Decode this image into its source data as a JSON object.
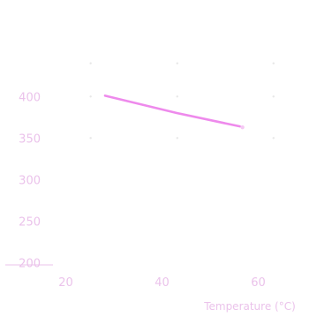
{
  "chart_data": {
    "type": "line",
    "title": "",
    "xlabel": "Temperature (°C)",
    "ylabel": "",
    "xlim": [
      10,
      80
    ],
    "ylim": [
      195,
      440
    ],
    "x_ticks": [
      20,
      40,
      60
    ],
    "y_ticks": [
      200,
      250,
      300,
      350,
      400
    ],
    "grid": true,
    "series": [
      {
        "values": [
          [
            30,
            401
          ],
          [
            45,
            380
          ],
          [
            58,
            364
          ]
        ]
      }
    ],
    "colors": {
      "line": "#ee8aec",
      "tick_label": "#ebc3eb",
      "grid": "#e7e7e7"
    }
  }
}
